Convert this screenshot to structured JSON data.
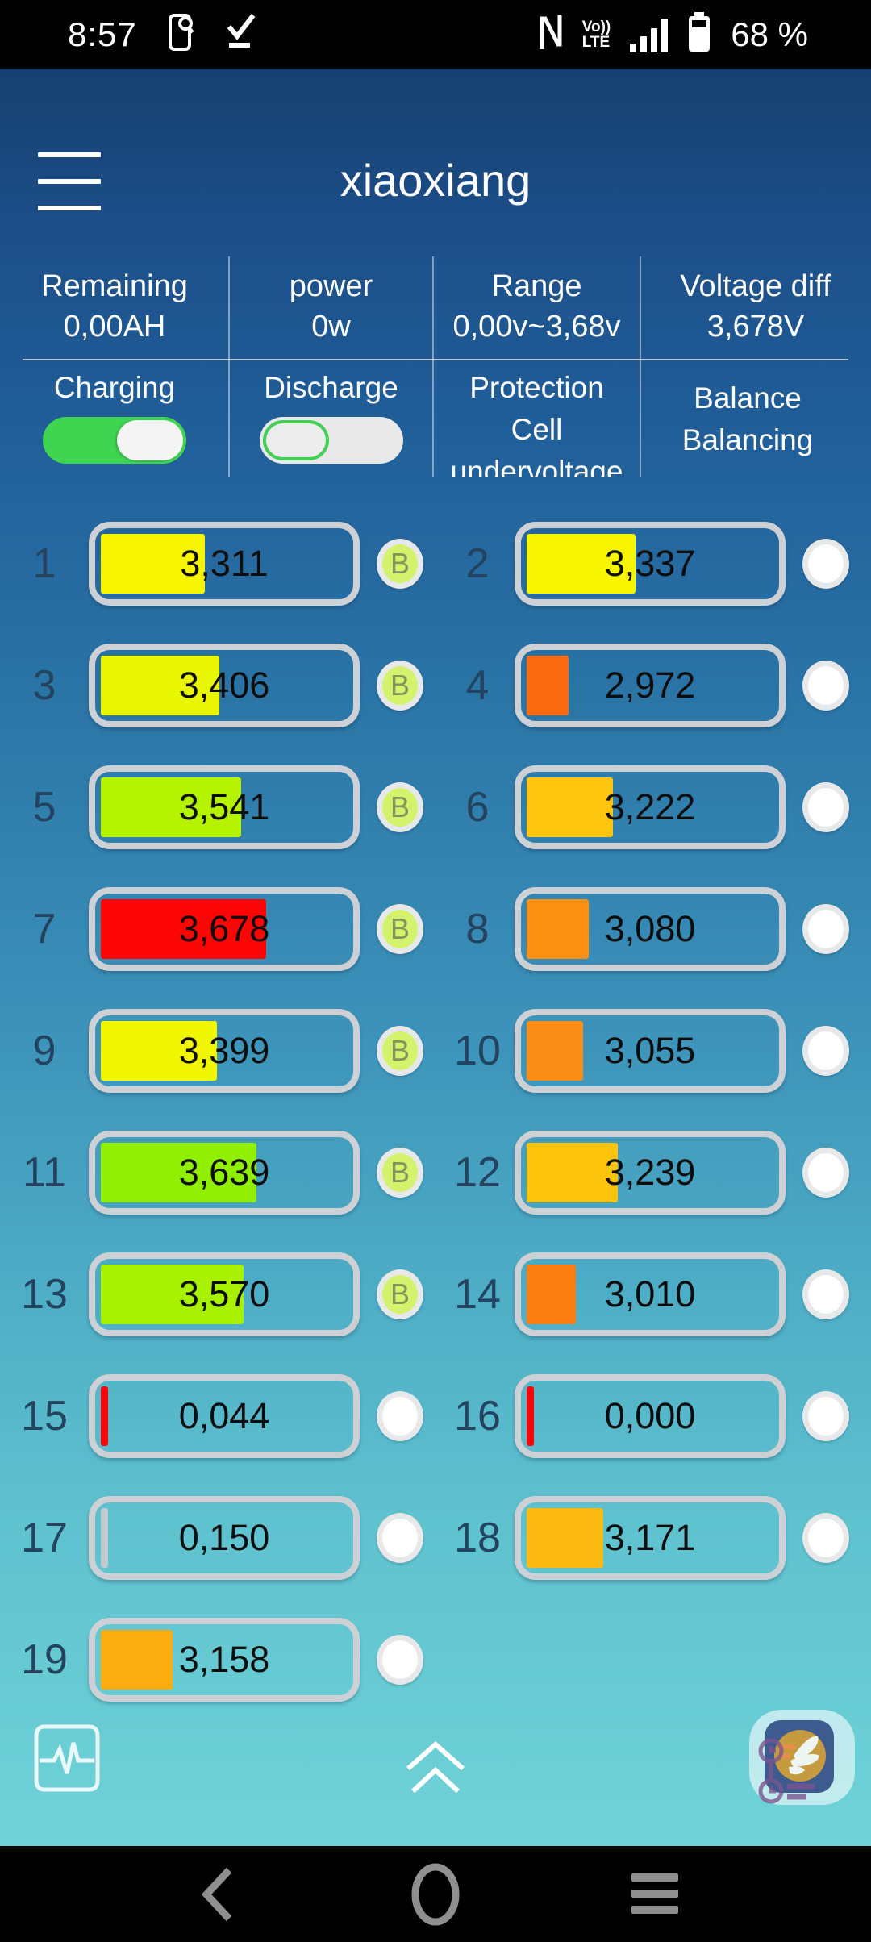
{
  "status_bar": {
    "time": "8:57",
    "battery_percent": "68 %",
    "volte_line1": "Vo))",
    "volte_line2": "LTE",
    "nfc_letter": "N",
    "left_icons": [
      "screen-search-icon",
      "check-underline-icon"
    ],
    "right_icons": [
      "nfc-icon",
      "volte-icon",
      "signal-icon",
      "battery-icon"
    ]
  },
  "header": {
    "title": "xiaoxiang",
    "menu_icon": "hamburger-icon"
  },
  "stats": {
    "columns": [
      {
        "label": "Remaining",
        "value": "0,00AH"
      },
      {
        "label": "power",
        "value": "0w"
      },
      {
        "label": "Range",
        "value": "0,00v~3,68v"
      },
      {
        "label": "Voltage diff",
        "value": "3,678V"
      }
    ]
  },
  "controls": {
    "charging_label": "Charging",
    "charging_on": true,
    "discharge_label": "Discharge",
    "discharge_on": false,
    "protection_label": "Protection Cell undervoltage",
    "balance_label": "Balance Balancing"
  },
  "cell_grid": {
    "balance_letter": "B",
    "cells": [
      {
        "num": "1",
        "value": "3,311",
        "fill_pct": 42,
        "color": "#f7f500",
        "balancing": true
      },
      {
        "num": "2",
        "value": "3,337",
        "fill_pct": 44,
        "color": "#f7f500",
        "balancing": false
      },
      {
        "num": "3",
        "value": "3,406",
        "fill_pct": 48,
        "color": "#e9f802",
        "balancing": true
      },
      {
        "num": "4",
        "value": "2,972",
        "fill_pct": 17,
        "color": "#fb6a11",
        "balancing": false
      },
      {
        "num": "5",
        "value": "3,541",
        "fill_pct": 57,
        "color": "#b5f301",
        "balancing": true
      },
      {
        "num": "6",
        "value": "3,222",
        "fill_pct": 35,
        "color": "#fec50f",
        "balancing": false
      },
      {
        "num": "7",
        "value": "3,678",
        "fill_pct": 67,
        "color": "#fb0505",
        "balancing": true
      },
      {
        "num": "8",
        "value": "3,080",
        "fill_pct": 25,
        "color": "#fb9013",
        "balancing": false
      },
      {
        "num": "9",
        "value": "3,399",
        "fill_pct": 47,
        "color": "#f0f700",
        "balancing": true
      },
      {
        "num": "10",
        "value": "3,055",
        "fill_pct": 23,
        "color": "#fa8d15",
        "balancing": false
      },
      {
        "num": "11",
        "value": "3,639",
        "fill_pct": 63,
        "color": "#90ef02",
        "balancing": true
      },
      {
        "num": "12",
        "value": "3,239",
        "fill_pct": 37,
        "color": "#fdc40d",
        "balancing": false
      },
      {
        "num": "13",
        "value": "3,570",
        "fill_pct": 58,
        "color": "#a7f101",
        "balancing": true
      },
      {
        "num": "14",
        "value": "3,010",
        "fill_pct": 20,
        "color": "#fa7f10",
        "balancing": false
      },
      {
        "num": "15",
        "value": "0,044",
        "fill_pct": 3,
        "color": "#fb0505",
        "balancing": false
      },
      {
        "num": "16",
        "value": "0,000",
        "fill_pct": 3,
        "color": "#fb0505",
        "balancing": false
      },
      {
        "num": "17",
        "value": "0,150",
        "fill_pct": 3,
        "color": "#c3c9cf",
        "balancing": false
      },
      {
        "num": "18",
        "value": "3,171",
        "fill_pct": 31,
        "color": "#fdba12",
        "balancing": false
      },
      {
        "num": "19",
        "value": "3,158",
        "fill_pct": 29,
        "color": "#fbac0e",
        "balancing": false
      }
    ]
  },
  "footer": {
    "left_icon": "pulse-monitor-icon",
    "center_icon": "double-chevron-up-icon",
    "right_icon": "overlay-app-bubble"
  },
  "nav_bar": {
    "icons": [
      "back-icon",
      "home-icon",
      "recent-apps-icon"
    ]
  },
  "colors": {
    "toggle_on": "#3fd551",
    "badge_green": "#d3f36d",
    "bg_top": "#16406f",
    "bg_bottom": "#6fd4d8",
    "nav_icon_gray": "#8f8f8f"
  }
}
